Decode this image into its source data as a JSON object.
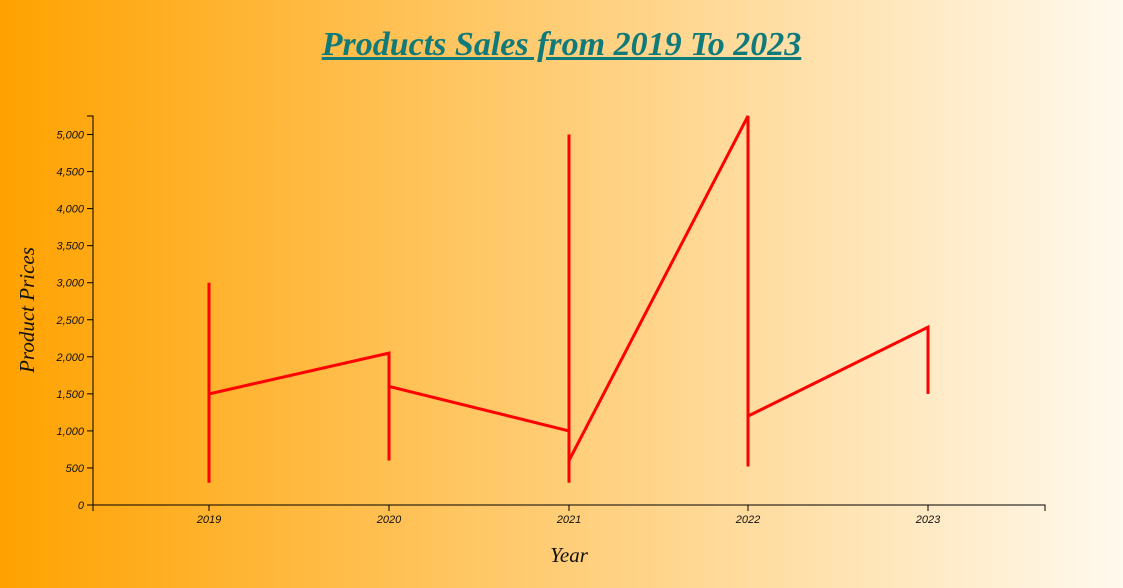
{
  "chart_data": {
    "type": "line",
    "title": "Products Sales from 2019 To 2023",
    "xlabel": "Year",
    "ylabel": "Product Prices",
    "categories": [
      "2019",
      "2020",
      "2021",
      "2022",
      "2023"
    ],
    "ylim": [
      0,
      5250
    ],
    "yticks": [
      0,
      500,
      1000,
      1500,
      2000,
      2500,
      3000,
      3500,
      4000,
      4500,
      5000
    ],
    "ytick_labels": [
      "0",
      "500",
      "1,000",
      "1,500",
      "2,000",
      "2,500",
      "3,000",
      "3,500",
      "4,000",
      "4,500",
      "5,000"
    ],
    "grid": false,
    "legend": "none",
    "line_color": "#ff0000",
    "series": [
      {
        "points": [
          {
            "x": "2019",
            "y": 3000
          },
          {
            "x": "2019",
            "y": 300
          },
          {
            "x": "2019",
            "y": 1500
          },
          {
            "x": "2020",
            "y": 2050
          },
          {
            "x": "2020",
            "y": 600
          },
          {
            "x": "2020",
            "y": 1600
          },
          {
            "x": "2021",
            "y": 1000
          },
          {
            "x": "2021",
            "y": 5000
          },
          {
            "x": "2021",
            "y": 300
          },
          {
            "x": "2021",
            "y": 600
          },
          {
            "x": "2022",
            "y": 5250
          },
          {
            "x": "2022",
            "y": 520
          },
          {
            "x": "2022",
            "y": 1200
          },
          {
            "x": "2023",
            "y": 2400
          },
          {
            "x": "2023",
            "y": 1500
          }
        ]
      }
    ]
  }
}
